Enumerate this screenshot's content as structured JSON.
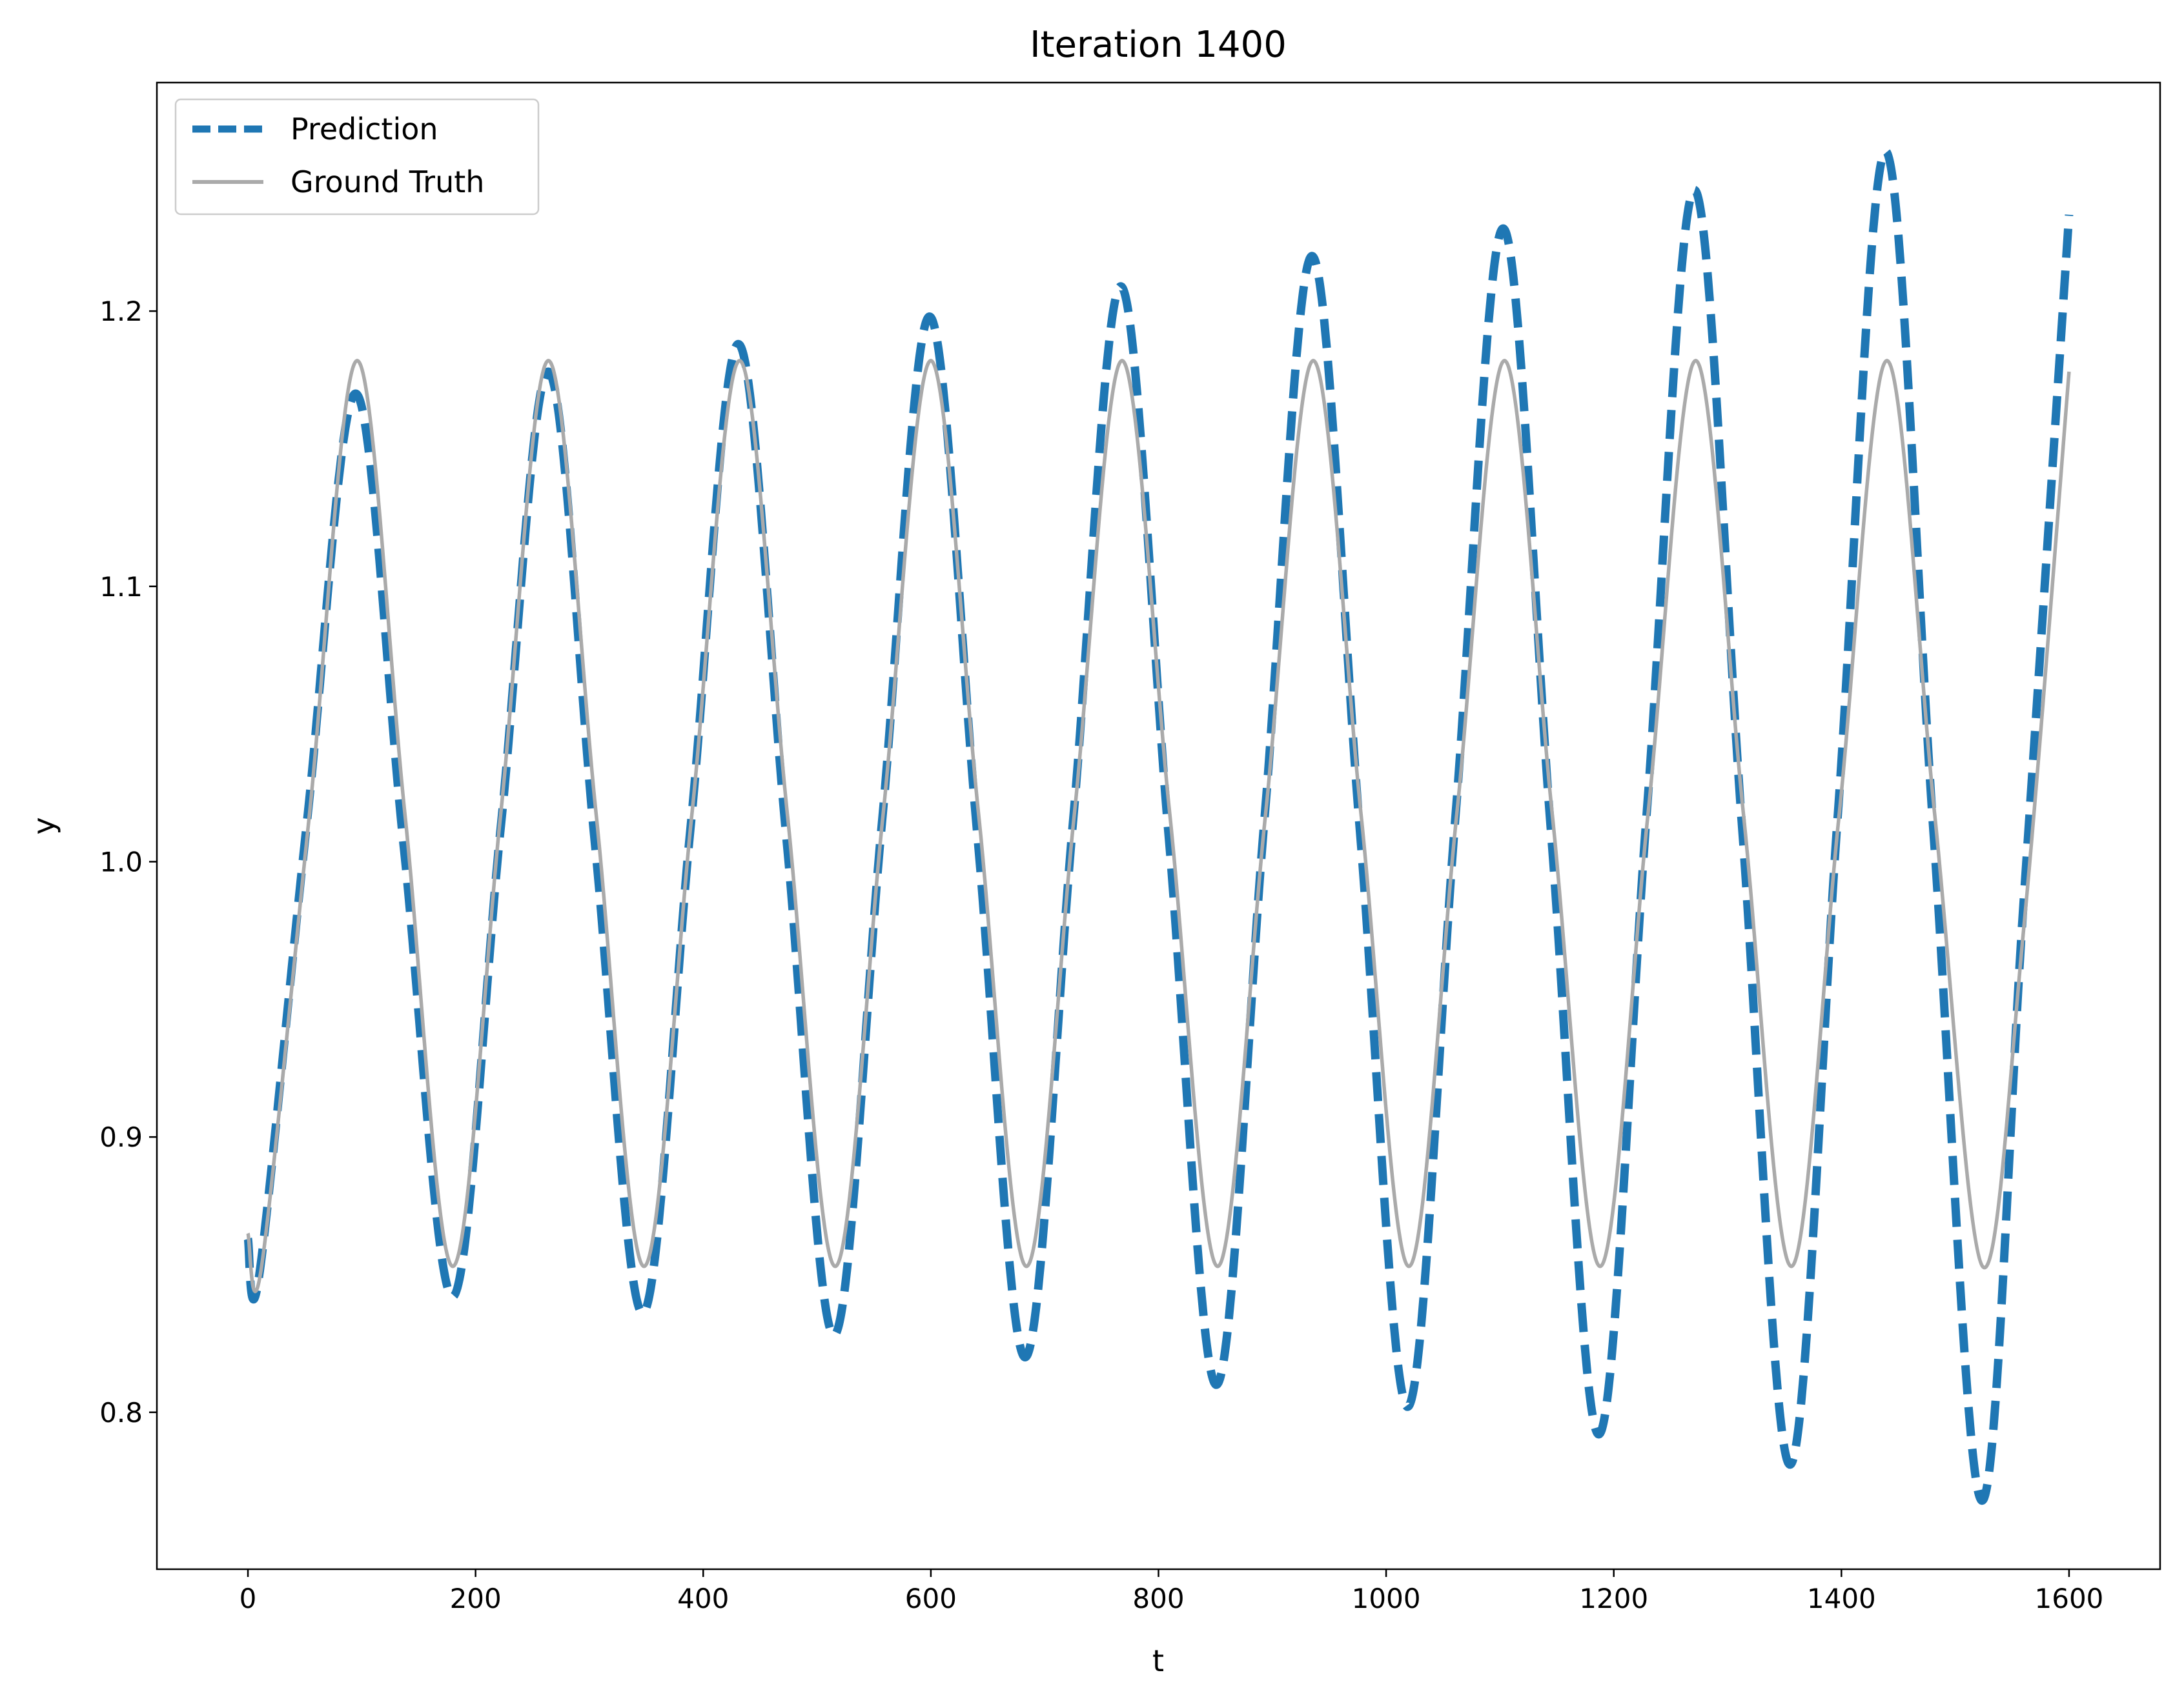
{
  "chart_data": {
    "type": "line",
    "title": "Iteration 1400",
    "xlabel": "t",
    "ylabel": "y",
    "xlim": [
      -80,
      1680
    ],
    "ylim": [
      0.743,
      1.283
    ],
    "xticks": [
      0,
      200,
      400,
      600,
      800,
      1000,
      1200,
      1400,
      1600
    ],
    "yticks": [
      0.8,
      0.9,
      1.0,
      1.1,
      1.2
    ],
    "xtick_labels": [
      "0",
      "200",
      "400",
      "600",
      "800",
      "1000",
      "1200",
      "1400",
      "1600"
    ],
    "ytick_labels": [
      "0.8",
      "0.9",
      "1.0",
      "1.1",
      "1.2"
    ],
    "grid": false,
    "legend_position": "top-left",
    "series": [
      {
        "name": "Prediction",
        "color": "#1f77b4",
        "style": "dashed",
        "x": [
          0,
          10,
          52,
          95,
          137,
          180,
          222,
          264,
          305,
          347,
          389,
          431,
          473,
          515,
          557,
          599,
          641,
          683,
          725,
          767,
          809,
          851,
          893,
          935,
          977,
          1019,
          1061,
          1103,
          1145,
          1187,
          1229,
          1271,
          1313,
          1355,
          1397,
          1439,
          1481,
          1523,
          1560,
          1600
        ],
        "y": [
          0.863,
          0.85,
          1.015,
          1.17,
          1.005,
          0.842,
          1.012,
          1.178,
          1.006,
          0.836,
          1.013,
          1.188,
          1.009,
          0.828,
          1.014,
          1.198,
          1.009,
          0.82,
          1.015,
          1.209,
          1.009,
          0.81,
          1.015,
          1.22,
          1.011,
          0.802,
          1.017,
          1.23,
          1.01,
          0.792,
          1.018,
          1.244,
          1.011,
          0.781,
          1.018,
          1.258,
          1.01,
          0.768,
          0.985,
          1.235
        ]
      },
      {
        "name": "Ground Truth",
        "color": "#aaaaaa",
        "style": "solid",
        "x": [
          0,
          12,
          54,
          96,
          138,
          180,
          222,
          264,
          306,
          348,
          390,
          432,
          474,
          516,
          558,
          600,
          642,
          684,
          726,
          768,
          810,
          852,
          894,
          936,
          978,
          1020,
          1062,
          1104,
          1146,
          1188,
          1230,
          1272,
          1314,
          1356,
          1398,
          1440,
          1482,
          1524,
          1560,
          1600
        ],
        "y": [
          0.865,
          0.853,
          1.017,
          1.182,
          1.017,
          0.853,
          1.017,
          1.182,
          1.017,
          0.853,
          1.017,
          1.182,
          1.017,
          0.853,
          1.017,
          1.182,
          1.017,
          0.853,
          1.017,
          1.182,
          1.017,
          0.853,
          1.017,
          1.182,
          1.017,
          0.853,
          1.017,
          1.182,
          1.017,
          0.853,
          1.017,
          1.182,
          1.017,
          0.853,
          1.017,
          1.182,
          1.017,
          0.853,
          0.975,
          1.178
        ]
      }
    ]
  }
}
